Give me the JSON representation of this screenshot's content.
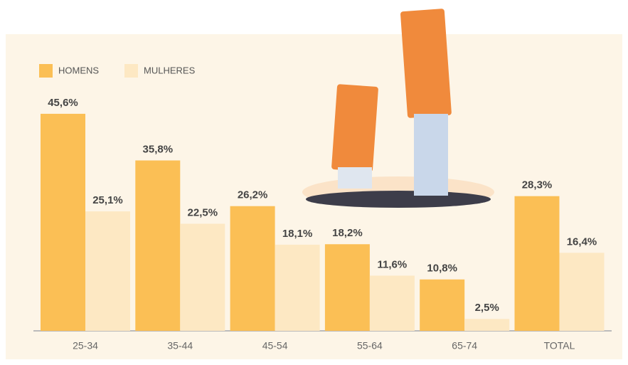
{
  "chart_data": {
    "type": "bar",
    "categories": [
      "25-34",
      "35-44",
      "45-54",
      "55-64",
      "65-74",
      "TOTAL"
    ],
    "series": [
      {
        "name": "HOMENS",
        "color": "#fbbf55",
        "values": [
          45.6,
          35.8,
          26.2,
          18.2,
          10.8,
          28.3
        ],
        "value_labels": [
          "45,6%",
          "35,8%",
          "26,2%",
          "18,2%",
          "10,8%",
          "28,3%"
        ]
      },
      {
        "name": "MULHERES",
        "color": "#fde8c3",
        "values": [
          25.1,
          22.5,
          18.1,
          11.6,
          2.5,
          16.4
        ],
        "value_labels": [
          "25,1%",
          "22,5%",
          "18,1%",
          "11,6%",
          "2,5%",
          "16,4%"
        ]
      }
    ],
    "legend": "top-left"
  }
}
